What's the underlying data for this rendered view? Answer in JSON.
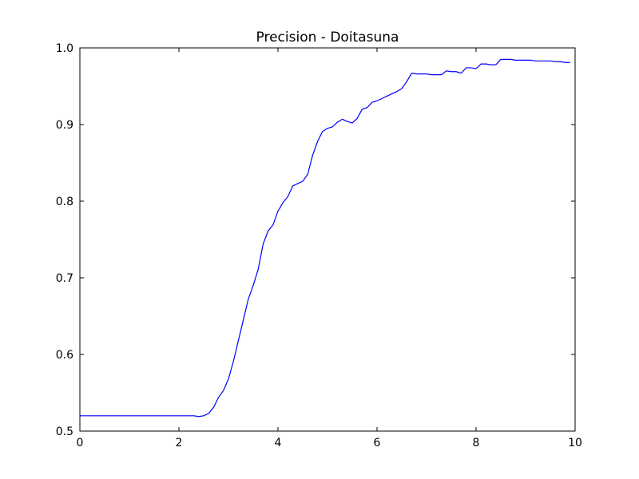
{
  "chart_data": {
    "type": "line",
    "title": "Precision - Doitasuna",
    "xlabel": "",
    "ylabel": "",
    "xlim": [
      0,
      10
    ],
    "ylim": [
      0.5,
      1.0
    ],
    "x_ticks": [
      0,
      2,
      4,
      6,
      8,
      10
    ],
    "x_tick_labels": [
      "0",
      "2",
      "4",
      "6",
      "8",
      "10"
    ],
    "y_ticks": [
      0.5,
      0.6,
      0.7,
      0.8,
      0.9,
      1.0
    ],
    "y_tick_labels": [
      "0.5",
      "0.6",
      "0.7",
      "0.8",
      "0.9",
      "1.0"
    ],
    "grid": false,
    "legend": "none",
    "series": [
      {
        "color": "#0000ff",
        "x": [
          0.0,
          0.1,
          0.2,
          0.3,
          0.4,
          0.5,
          0.6,
          0.7,
          0.8,
          0.9,
          1.0,
          1.1,
          1.2,
          1.3,
          1.4,
          1.5,
          1.6,
          1.7,
          1.8,
          1.9,
          2.0,
          2.1,
          2.2,
          2.3,
          2.4,
          2.5,
          2.6,
          2.7,
          2.8,
          2.9,
          3.0,
          3.1,
          3.2,
          3.3,
          3.4,
          3.5,
          3.6,
          3.7,
          3.8,
          3.9,
          4.0,
          4.1,
          4.2,
          4.3,
          4.4,
          4.5,
          4.6,
          4.7,
          4.8,
          4.9,
          5.0,
          5.1,
          5.2,
          5.3,
          5.4,
          5.5,
          5.6,
          5.7,
          5.8,
          5.9,
          6.0,
          6.1,
          6.2,
          6.3,
          6.4,
          6.5,
          6.6,
          6.7,
          6.8,
          6.9,
          7.0,
          7.1,
          7.2,
          7.3,
          7.4,
          7.5,
          7.6,
          7.7,
          7.8,
          7.9,
          8.0,
          8.1,
          8.2,
          8.3,
          8.4,
          8.5,
          8.6,
          8.7,
          8.8,
          8.9,
          9.0,
          9.1,
          9.2,
          9.3,
          9.4,
          9.5,
          9.6,
          9.7,
          9.8,
          9.9
        ],
        "y": [
          0.52,
          0.52,
          0.52,
          0.52,
          0.52,
          0.52,
          0.52,
          0.52,
          0.52,
          0.52,
          0.52,
          0.52,
          0.52,
          0.52,
          0.52,
          0.52,
          0.52,
          0.52,
          0.52,
          0.52,
          0.52,
          0.52,
          0.52,
          0.52,
          0.519,
          0.52,
          0.523,
          0.531,
          0.544,
          0.553,
          0.568,
          0.591,
          0.618,
          0.645,
          0.672,
          0.69,
          0.711,
          0.744,
          0.761,
          0.769,
          0.787,
          0.798,
          0.806,
          0.82,
          0.823,
          0.826,
          0.835,
          0.86,
          0.878,
          0.891,
          0.895,
          0.897,
          0.903,
          0.907,
          0.904,
          0.902,
          0.908,
          0.92,
          0.922,
          0.929,
          0.931,
          0.934,
          0.937,
          0.94,
          0.943,
          0.947,
          0.956,
          0.967,
          0.966,
          0.966,
          0.966,
          0.965,
          0.965,
          0.965,
          0.97,
          0.969,
          0.969,
          0.967,
          0.974,
          0.974,
          0.973,
          0.979,
          0.979,
          0.978,
          0.978,
          0.985,
          0.985,
          0.985,
          0.984,
          0.984,
          0.984,
          0.984,
          0.983,
          0.983,
          0.983,
          0.983,
          0.982,
          0.982,
          0.981,
          0.981
        ]
      }
    ]
  }
}
